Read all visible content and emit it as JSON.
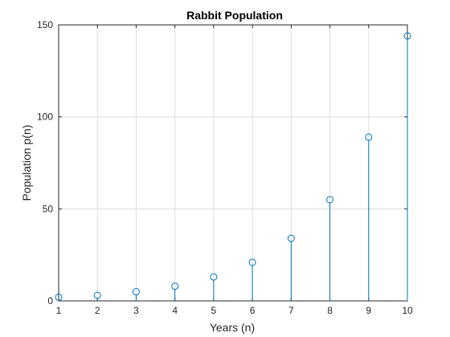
{
  "chart_data": {
    "type": "stem",
    "title": "Rabbit Population",
    "xlabel": "Years (n)",
    "ylabel": "Population p(n)",
    "x": [
      1,
      2,
      3,
      4,
      5,
      6,
      7,
      8,
      9,
      10
    ],
    "y": [
      2,
      3,
      5,
      8,
      13,
      21,
      34,
      55,
      89,
      144
    ],
    "xlim": [
      1,
      10
    ],
    "ylim": [
      0,
      150
    ],
    "xticks": [
      1,
      2,
      3,
      4,
      5,
      6,
      7,
      8,
      9,
      10
    ],
    "yticks": [
      0,
      50,
      100,
      150
    ],
    "xtick_labels": [
      "1",
      "2",
      "3",
      "4",
      "5",
      "6",
      "7",
      "8",
      "9",
      "10"
    ],
    "ytick_labels": [
      "0",
      "50",
      "100",
      "150"
    ],
    "grid": true,
    "marker": "circle-open",
    "series_color": "#0072BD",
    "grid_color": "#dcdcdc",
    "axis_color": "#262626"
  }
}
